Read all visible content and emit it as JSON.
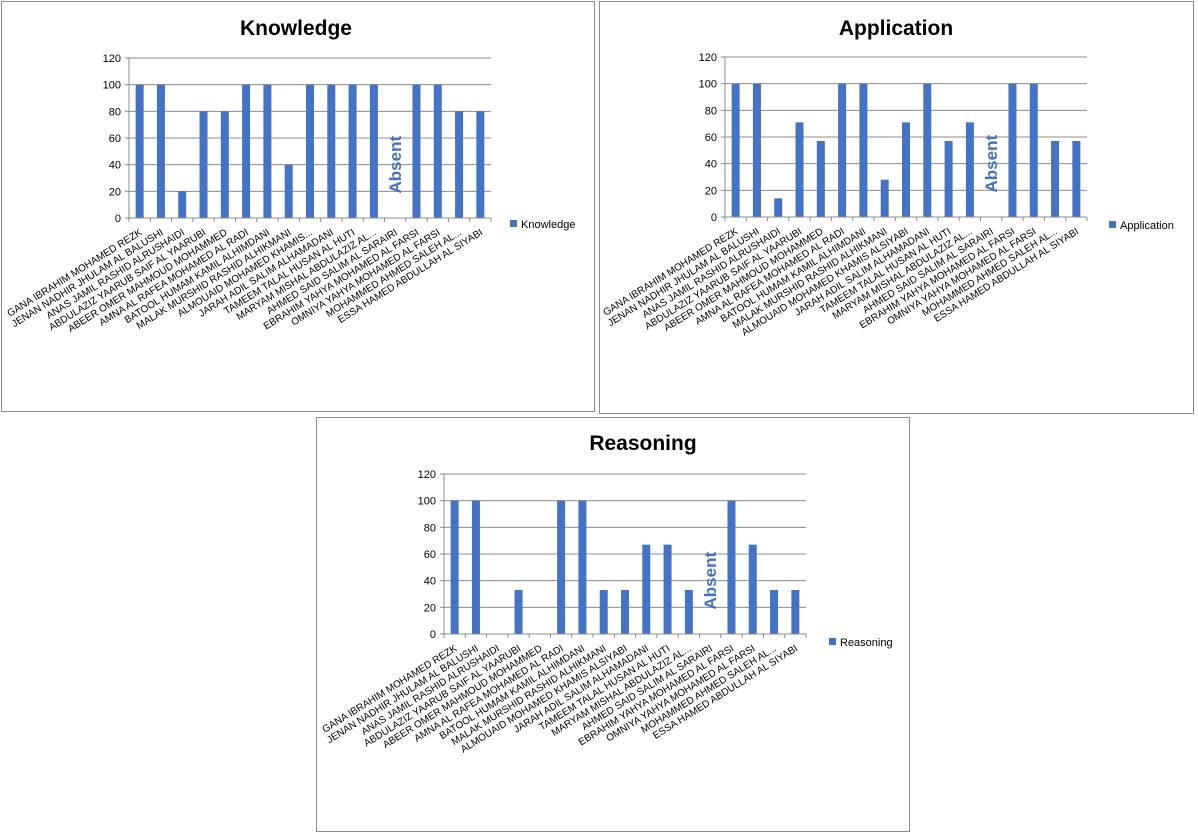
{
  "chart_data": [
    {
      "type": "bar",
      "title": "Knowledge",
      "ylim": [
        0,
        120
      ],
      "yticks": [
        "0",
        "20",
        "40",
        "60",
        "80",
        "100",
        "120"
      ],
      "grid": true,
      "legend_position": "right",
      "color": "#4472c4",
      "categories": [
        "GANA IBRAHIM MOHAMED REZK",
        "JENAN NADHIR JHULAM AL BALUSHI",
        "ANAS JAMIL RASHID ALRUSHAIDI",
        "ABDULAZIZ YAARUB SAIF AL YAARUBI",
        "ABEER OMER MAHMOUD MOHAMMED",
        "AMNA AL RAFEA MOHAMED AL RADI",
        "BATOOL HUMAM KAMIL ALHIMDANI",
        "MALAK MURSHID RASHID ALHIKMANI",
        "ALMOUAID MOHAMED KHAMIS...",
        "JARAH ADIL SALIM ALHAMADANI",
        "TAMEEM TALAL HUSAN AL HUTI",
        "MARYAM MISHAL ABDULAZIZ AL...",
        "AHMED SAID SALIM AL SARAIRI",
        "EBRAHIM YAHYA MOHAMED AL FARSI",
        "OMNIYA YAHYA MOHAMED AL FARSI",
        "MOHAMMED AHMED SALEH AL...",
        "ESSA HAMED ABDULLAH AL SIYABI"
      ],
      "series": [
        {
          "name": "Knowledge",
          "values": [
            100,
            100,
            20,
            80,
            80,
            100,
            100,
            40,
            100,
            100,
            100,
            100,
            null,
            100,
            100,
            80,
            80
          ]
        }
      ],
      "annotation": {
        "text": "Absent",
        "category_index": 12
      }
    },
    {
      "type": "bar",
      "title": "Application",
      "ylim": [
        0,
        120
      ],
      "yticks": [
        "0",
        "20",
        "40",
        "60",
        "80",
        "100",
        "120"
      ],
      "grid": true,
      "legend_position": "right",
      "color": "#4472c4",
      "categories": [
        "GANA IBRAHIM MOHAMED REZK",
        "JENAN NADHIR JHULAM AL BALUSHI",
        "ANAS JAMIL RASHID ALRUSHAIDI",
        "ABDULAZIZ YAARUB SAIF AL YAARUBI",
        "ABEER OMER MAHMOUD MOHAMMED",
        "AMNA AL RAFEA MOHAMED AL RADI",
        "BATOOL HUMAM KAMIL ALHIMDANI",
        "MALAK MURSHID RASHID ALHIKMANI",
        "ALMOUAID MOHAMED KHAMIS ALSIYABI",
        "JARAH ADIL SALIM ALHAMADANI",
        "TAMEEM TALAL HUSAN AL HUTI",
        "MARYAM MISHAL ABDULAZIZ AL...",
        "AHMED SAID SALIM AL SARAIRI",
        "EBRAHIM YAHYA MOHAMED AL FARSI",
        "OMNIYA YAHYA MOHAMED AL FARSI",
        "MOHAMMED AHMED SALEH AL...",
        "ESSA HAMED ABDULLAH AL SIYABI"
      ],
      "series": [
        {
          "name": "Application",
          "values": [
            100,
            100,
            14,
            71,
            57,
            100,
            100,
            28,
            71,
            100,
            57,
            71,
            null,
            100,
            100,
            57,
            57
          ]
        }
      ],
      "annotation": {
        "text": "Absent",
        "category_index": 12
      }
    },
    {
      "type": "bar",
      "title": "Reasoning",
      "ylim": [
        0,
        120
      ],
      "yticks": [
        "0",
        "20",
        "40",
        "60",
        "80",
        "100",
        "120"
      ],
      "grid": true,
      "legend_position": "right",
      "color": "#4472c4",
      "categories": [
        "GANA IBRAHIM MOHAMED REZK",
        "JENAN NADHIR JHULAM AL BALUSHI",
        "ANAS JAMIL RASHID ALRUSHAIDI",
        "ABDULAZIZ YAARUB SAIF AL YAARUBI",
        "ABEER OMER MAHMOUD MOHAMMED",
        "AMNA AL RAFEA MOHAMED AL RADI",
        "BATOOL HUMAM KAMIL ALHIMDANI",
        "MALAK MURSHID RASHID ALHIKMANI",
        "ALMOUAID MOHAMED KHAMIS ALSIYABI",
        "JARAH ADIL SALIM ALHAMADANI",
        "TAMEEM TALAL HUSAN AL HUTI",
        "MARYAM MISHAL ABDULAZIZ AL...",
        "AHMED SAID SALIM AL SARAIRI",
        "EBRAHIM YAHYA MOHAMED AL FARSI",
        "OMNIYA YAHYA MOHAMED AL FARSI",
        "MOHAMMED AHMED SALEH AL...",
        "ESSA HAMED ABDULLAH AL SIYABI"
      ],
      "series": [
        {
          "name": "Reasoning",
          "values": [
            100,
            100,
            0,
            33,
            0,
            100,
            100,
            33,
            33,
            67,
            67,
            33,
            null,
            100,
            67,
            33,
            33
          ]
        }
      ],
      "annotation": {
        "text": "Absent",
        "category_index": 12
      }
    }
  ]
}
